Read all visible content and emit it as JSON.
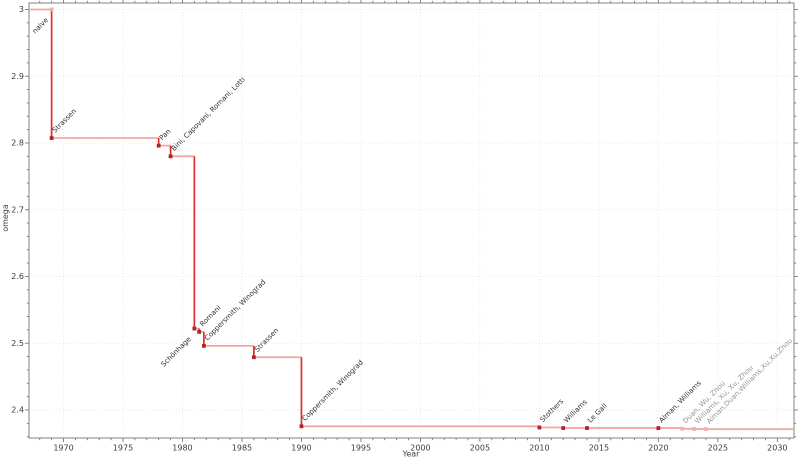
{
  "chart_data": {
    "type": "line",
    "subtype": "step-post",
    "title": "",
    "xlabel": "Year",
    "ylabel": "omega",
    "xlim": [
      1967.1,
      2031.4
    ],
    "ylim": [
      2.358,
      3.0097
    ],
    "grid": true,
    "legend": "none",
    "x_ticks": {
      "values": [
        1970,
        1975,
        1980,
        1985,
        1990,
        1995,
        2000,
        2005,
        2010,
        2015,
        2020,
        2025,
        2030
      ],
      "labels": [
        "1970",
        "1975",
        "1980",
        "1985",
        "1990",
        "1995",
        "2000",
        "2005",
        "2010",
        "2015",
        "2020",
        "2025",
        "2030"
      ],
      "minor_step": 1
    },
    "y_ticks": {
      "values": [
        3.0,
        2.9,
        2.8,
        2.7,
        2.6,
        2.5,
        2.4
      ],
      "labels": [
        "3",
        "2.9",
        "2.8",
        "2.7",
        "2.6",
        "2.5",
        "2.4"
      ],
      "minor_step": 0.02
    },
    "points": [
      {
        "year": 1969,
        "omega": 3.0,
        "label": "naive",
        "label_anchor": "end",
        "marker_faded": true,
        "label_faded": false
      },
      {
        "year": 1969,
        "omega": 2.8074,
        "label": "Strassen",
        "label_anchor": "start",
        "marker_faded": false,
        "label_faded": false
      },
      {
        "year": 1978,
        "omega": 2.796,
        "label": "Pan",
        "label_anchor": "start",
        "marker_faded": false,
        "label_faded": false
      },
      {
        "year": 1979,
        "omega": 2.78,
        "label": "Bini, Capovani, Romani, Lotti",
        "label_anchor": "start",
        "marker_faded": false,
        "label_faded": false
      },
      {
        "year": 1981,
        "omega": 2.522,
        "label": "Schönhage",
        "label_anchor": "end",
        "marker_faded": false,
        "label_faded": false
      },
      {
        "year": 1981.4,
        "omega": 2.517,
        "label": "Romani",
        "label_anchor": "start",
        "marker_faded": false,
        "label_faded": false
      },
      {
        "year": 1981.8,
        "omega": 2.496,
        "label": "Coppersmith, Winograd",
        "label_anchor": "start",
        "marker_faded": false,
        "label_faded": false
      },
      {
        "year": 1986,
        "omega": 2.479,
        "label": "Strassen",
        "label_anchor": "start",
        "marker_faded": false,
        "label_faded": false
      },
      {
        "year": 1990,
        "omega": 2.3755,
        "label": "Coppersmith, Winograd",
        "label_anchor": "start",
        "marker_faded": false,
        "label_faded": false
      },
      {
        "year": 2010,
        "omega": 2.3737,
        "label": "Stothers",
        "label_anchor": "start",
        "marker_faded": false,
        "label_faded": false
      },
      {
        "year": 2012,
        "omega": 2.3729,
        "label": "Williams",
        "label_anchor": "start",
        "marker_faded": false,
        "label_faded": false
      },
      {
        "year": 2014,
        "omega": 2.37287,
        "label": "Le Gall",
        "label_anchor": "start",
        "marker_faded": false,
        "label_faded": false
      },
      {
        "year": 2020,
        "omega": 2.37286,
        "label": "Alman, Williams",
        "label_anchor": "start",
        "marker_faded": false,
        "label_faded": false
      },
      {
        "year": 2022,
        "omega": 2.37188,
        "label": "Duan, Wu, Zhou",
        "label_anchor": "start",
        "marker_faded": true,
        "label_faded": true
      },
      {
        "year": 2023,
        "omega": 2.37155,
        "label": "Williams, Xu, Xu, Zhou",
        "label_anchor": "start",
        "marker_faded": true,
        "label_faded": true
      },
      {
        "year": 2024,
        "omega": 2.37134,
        "label": "Alman,Duan,Williams,Xu,Xu,Zhou",
        "label_anchor": "start",
        "marker_faded": true,
        "label_faded": true
      }
    ],
    "colors": {
      "step_horizontal": "#f0a8a2",
      "step_vertical": "#e12c2c",
      "marker": "#b22425",
      "marker_faded": "#f3afaa",
      "point_label": "#333333",
      "point_label_faded": "#969696",
      "grid": "#e3e3e3",
      "axis": "#808080",
      "tick": "#787878",
      "tick_label": "#3c3c3c"
    }
  }
}
